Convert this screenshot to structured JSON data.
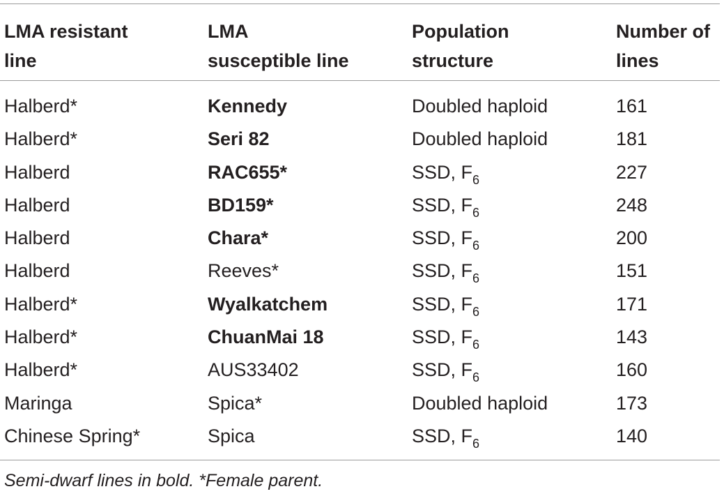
{
  "table": {
    "headers": [
      "LMA resistant\nline",
      "LMA\nsusceptible line",
      "Population\nstructure",
      "Number of\nlines"
    ],
    "rows": [
      {
        "resistant": "Halberd*",
        "susceptible": "Kennedy",
        "susceptible_bold": true,
        "structure": "Doubled haploid",
        "structure_sub": "",
        "number": "161"
      },
      {
        "resistant": "Halberd*",
        "susceptible": "Seri 82",
        "susceptible_bold": true,
        "structure": "Doubled haploid",
        "structure_sub": "",
        "number": "181"
      },
      {
        "resistant": "Halberd",
        "susceptible": "RAC655*",
        "susceptible_bold": true,
        "structure": "SSD, F",
        "structure_sub": "6",
        "number": "227"
      },
      {
        "resistant": "Halberd",
        "susceptible": "BD159*",
        "susceptible_bold": true,
        "structure": "SSD, F",
        "structure_sub": "6",
        "number": "248"
      },
      {
        "resistant": "Halberd",
        "susceptible": "Chara*",
        "susceptible_bold": true,
        "structure": "SSD, F",
        "structure_sub": "6",
        "number": "200"
      },
      {
        "resistant": "Halberd",
        "susceptible": "Reeves*",
        "susceptible_bold": false,
        "structure": "SSD, F",
        "structure_sub": "6",
        "number": "151"
      },
      {
        "resistant": "Halberd*",
        "susceptible": "Wyalkatchem",
        "susceptible_bold": true,
        "structure": "SSD, F",
        "structure_sub": "6",
        "number": "171"
      },
      {
        "resistant": "Halberd*",
        "susceptible": "ChuanMai 18",
        "susceptible_bold": true,
        "structure": "SSD, F",
        "structure_sub": "6",
        "number": "143"
      },
      {
        "resistant": "Halberd*",
        "susceptible": "AUS33402",
        "susceptible_bold": false,
        "structure": "SSD, F",
        "structure_sub": "6",
        "number": "160"
      },
      {
        "resistant": "Maringa",
        "susceptible": "Spica*",
        "susceptible_bold": false,
        "structure": "Doubled haploid",
        "structure_sub": "",
        "number": "173"
      },
      {
        "resistant": "Chinese Spring*",
        "susceptible": "Spica",
        "susceptible_bold": false,
        "structure": "SSD, F",
        "structure_sub": "6",
        "number": "140"
      }
    ],
    "footnote": "Semi-dwarf lines in bold. *Female parent."
  }
}
